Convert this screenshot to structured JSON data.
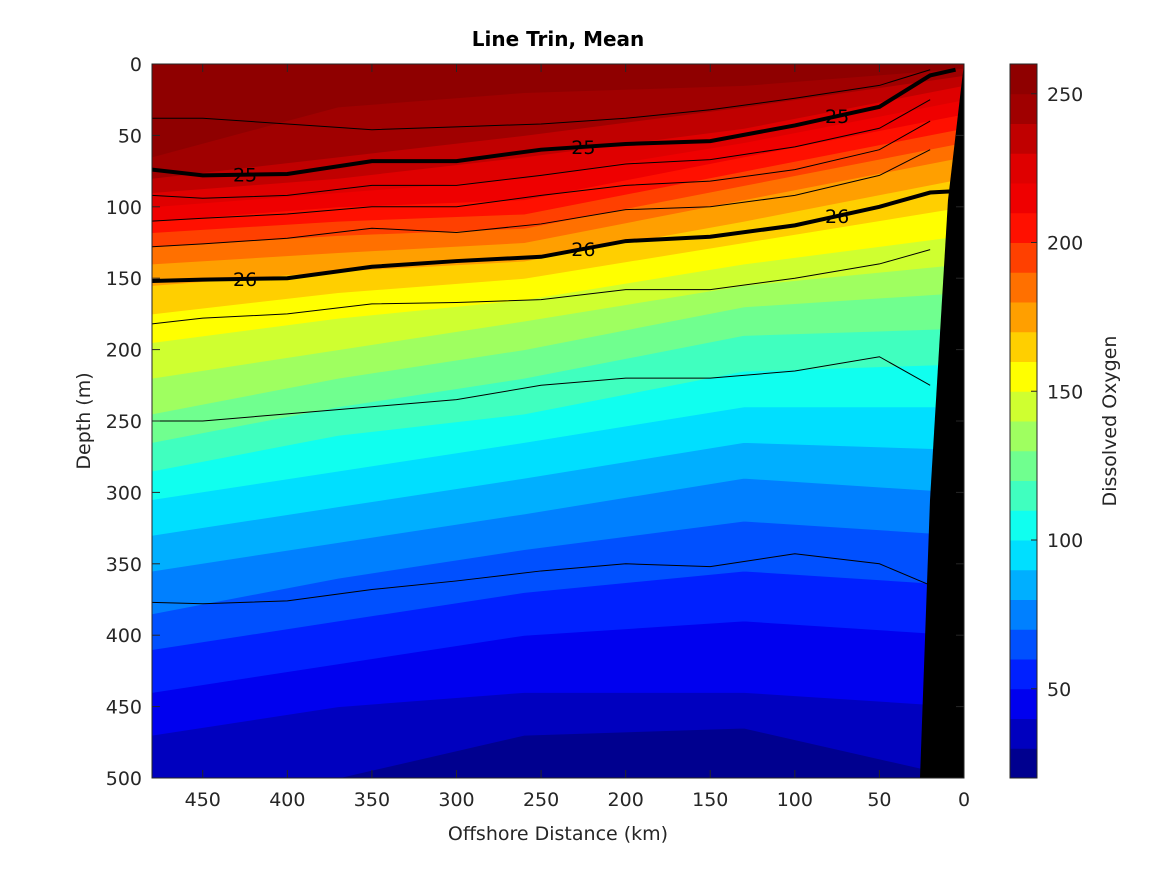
{
  "chart_data": {
    "type": "contour",
    "title": "Line Trin, Mean",
    "xlabel": "Offshore Distance (km)",
    "ylabel": "Depth (m)",
    "colorbar_label": "Dissolved Oxygen",
    "xlim": [
      480,
      0
    ],
    "xticks": [
      450,
      400,
      350,
      300,
      250,
      200,
      150,
      100,
      50,
      0
    ],
    "ylim": [
      0,
      500
    ],
    "yticks": [
      0,
      50,
      100,
      150,
      200,
      250,
      300,
      350,
      400,
      450,
      500
    ],
    "y_reversed": true,
    "clim": [
      20,
      260
    ],
    "cticks": [
      50,
      100,
      150,
      200,
      250
    ],
    "levels": [
      20,
      30,
      40,
      50,
      60,
      70,
      80,
      90,
      100,
      110,
      120,
      130,
      140,
      150,
      160,
      170,
      180,
      190,
      200,
      210,
      220,
      230,
      240,
      250,
      260
    ],
    "colors": [
      "#00008f",
      "#0000bf",
      "#0000ef",
      "#0020ff",
      "#0050ff",
      "#0080ff",
      "#00afff",
      "#00dfff",
      "#10ffef",
      "#40ffbf",
      "#70ff8f",
      "#9fff60",
      "#cfff30",
      "#ffff00",
      "#ffcf00",
      "#ff9f00",
      "#ff7000",
      "#ff4000",
      "#ff1000",
      "#ef0000",
      "#df0000",
      "#c00000",
      "#a00000",
      "#8f0000"
    ],
    "field_x": [
      480,
      370,
      260,
      130,
      0
    ],
    "field_depths": [
      [
        500,
        500,
        470,
        465,
        500
      ],
      [
        470,
        450,
        440,
        440,
        450
      ],
      [
        440,
        420,
        400,
        390,
        400
      ],
      [
        410,
        390,
        370,
        355,
        365
      ],
      [
        385,
        360,
        340,
        320,
        330
      ],
      [
        355,
        335,
        315,
        290,
        300
      ],
      [
        330,
        310,
        290,
        265,
        270
      ],
      [
        305,
        285,
        265,
        240,
        240
      ],
      [
        285,
        260,
        245,
        215,
        210
      ],
      [
        265,
        240,
        220,
        190,
        185
      ],
      [
        245,
        220,
        200,
        170,
        160
      ],
      [
        220,
        200,
        180,
        155,
        140
      ],
      [
        195,
        178,
        165,
        140,
        120
      ],
      [
        175,
        160,
        150,
        125,
        100
      ],
      [
        155,
        145,
        138,
        110,
        80
      ],
      [
        140,
        132,
        125,
        95,
        65
      ],
      [
        128,
        120,
        115,
        85,
        55
      ],
      [
        118,
        110,
        105,
        75,
        45
      ],
      [
        110,
        100,
        95,
        65,
        35
      ],
      [
        100,
        90,
        80,
        55,
        25
      ],
      [
        90,
        80,
        65,
        45,
        15
      ],
      [
        80,
        65,
        50,
        30,
        8
      ],
      [
        65,
        30,
        20,
        15,
        3
      ]
    ],
    "contour_x": [
      480,
      450,
      400,
      350,
      300,
      250,
      200,
      150,
      100,
      50,
      20,
      5
    ],
    "density_contours": [
      {
        "depths": [
          38,
          38,
          42,
          46,
          44,
          42,
          38,
          32,
          24,
          15,
          4,
          null
        ]
      },
      {
        "depths": [
          74,
          78,
          77,
          68,
          68,
          60,
          56,
          54,
          43,
          30,
          8,
          4
        ],
        "label": 25
      },
      {
        "depths": [
          92,
          94,
          92,
          85,
          85,
          78,
          70,
          67,
          58,
          45,
          25,
          null
        ]
      },
      {
        "depths": [
          110,
          108,
          105,
          100,
          100,
          92,
          85,
          82,
          74,
          60,
          40,
          null
        ]
      },
      {
        "depths": [
          128,
          126,
          122,
          115,
          118,
          112,
          102,
          100,
          92,
          78,
          60,
          null
        ]
      },
      {
        "depths": [
          152,
          151,
          150,
          142,
          138,
          135,
          124,
          121,
          113,
          100,
          90,
          89
        ],
        "label": 26
      },
      {
        "depths": [
          182,
          178,
          175,
          168,
          167,
          165,
          158,
          158,
          150,
          140,
          130,
          null
        ]
      },
      {
        "depths": [
          250,
          250,
          245,
          240,
          235,
          225,
          220,
          220,
          215,
          205,
          225,
          null
        ]
      },
      {
        "depths": [
          377,
          378,
          376,
          368,
          362,
          355,
          350,
          352,
          343,
          350,
          365,
          null
        ]
      }
    ]
  }
}
